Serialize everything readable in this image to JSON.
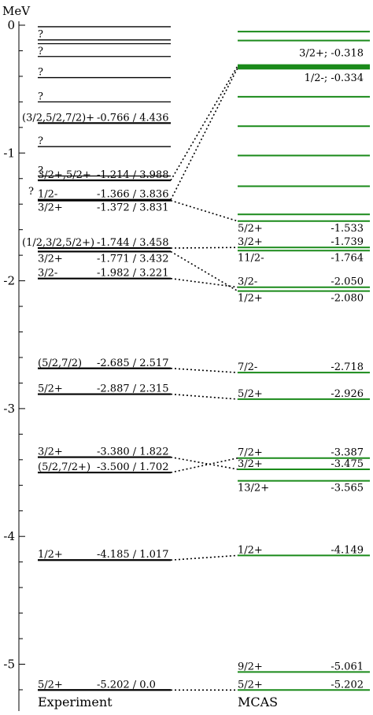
{
  "chart_data": {
    "type": "level-diagram",
    "unit_label": "MeV",
    "ylim": [
      -5.45,
      0.05
    ],
    "yticks": [
      {
        "value": 0,
        "label": "0"
      },
      {
        "value": -1,
        "label": "-1"
      },
      {
        "value": -2,
        "label": "-2"
      },
      {
        "value": -3,
        "label": "-3"
      },
      {
        "value": -4,
        "label": "-4"
      },
      {
        "value": -5,
        "label": "-5"
      }
    ],
    "experiment": {
      "label": "Experiment",
      "levels": [
        {
          "e": -0.012,
          "spin": "",
          "text": "",
          "heavy": false
        },
        {
          "e": -0.115,
          "spin": "?",
          "text": "",
          "heavy": false
        },
        {
          "e": -0.145,
          "spin": "",
          "text": "",
          "heavy": false
        },
        {
          "e": -0.245,
          "spin": "?",
          "text": "",
          "heavy": false
        },
        {
          "e": -0.41,
          "spin": "?",
          "text": "",
          "heavy": false
        },
        {
          "e": -0.6,
          "spin": "?",
          "text": "",
          "heavy": false
        },
        {
          "e": -0.766,
          "spin": "(3/2,5/2,7/2)+",
          "text": "-0.766 / 4.436",
          "heavy": false
        },
        {
          "e": -0.95,
          "spin": "?",
          "text": "",
          "heavy": false
        },
        {
          "e": -1.18,
          "spin": "?",
          "text": "",
          "heavy": false
        },
        {
          "e": -1.214,
          "spin": "3/2+,5/2+",
          "text": "-1.214 / 3.988",
          "heavy": false
        },
        {
          "e": -1.366,
          "spin": "1/2-",
          "text": "-1.366 / 3.836",
          "heavy": false
        },
        {
          "e": -1.372,
          "spin": "3/2+",
          "text": "-1.372 / 3.831",
          "heavy": false
        },
        {
          "e": -1.744,
          "spin": "(1/2,3/2,5/2+)",
          "text": "-1.744 / 3.458",
          "heavy": false
        },
        {
          "e": -1.771,
          "spin": "3/2+",
          "text": "-1.771 / 3.432",
          "heavy": false
        },
        {
          "e": -1.982,
          "spin": "3/2-",
          "text": "-1.982 / 3.221",
          "heavy": false
        },
        {
          "e": -2.685,
          "spin": "(5/2,7/2)",
          "text": "-2.685 / 2.517",
          "heavy": false
        },
        {
          "e": -2.887,
          "spin": "5/2+",
          "text": "-2.887 / 2.315",
          "heavy": false
        },
        {
          "e": -3.38,
          "spin": "3/2+",
          "text": "-3.380 / 1.822",
          "heavy": false
        },
        {
          "e": -3.5,
          "spin": "(5/2,7/2+)",
          "text": "-3.500 / 1.702",
          "heavy": false
        },
        {
          "e": -4.185,
          "spin": "1/2+",
          "text": "-4.185 / 1.017",
          "heavy": false
        },
        {
          "e": -5.202,
          "spin": "5/2+",
          "text": "-5.202 / 0.0",
          "heavy": false
        }
      ],
      "extra_marks": [
        {
          "e": -1.3,
          "spin": "?"
        }
      ]
    },
    "mcas": {
      "label": "MCAS",
      "levels": [
        {
          "e": -0.05,
          "spin": "",
          "text": ""
        },
        {
          "e": -0.12,
          "spin": "",
          "text": ""
        },
        {
          "e": -0.318,
          "spin": "3/2+;",
          "text": "-0.318"
        },
        {
          "e": -0.334,
          "spin": "1/2-;",
          "text": "-0.334"
        },
        {
          "e": -0.56,
          "spin": "",
          "text": ""
        },
        {
          "e": -0.79,
          "spin": "",
          "text": ""
        },
        {
          "e": -1.02,
          "spin": "",
          "text": ""
        },
        {
          "e": -1.26,
          "spin": "",
          "text": ""
        },
        {
          "e": -1.48,
          "spin": "",
          "text": ""
        },
        {
          "e": -1.533,
          "spin": "5/2+",
          "text": "-1.533"
        },
        {
          "e": -1.739,
          "spin": "3/2+",
          "text": "-1.739"
        },
        {
          "e": -1.764,
          "spin": "11/2-",
          "text": "-1.764"
        },
        {
          "e": -2.05,
          "spin": "3/2-",
          "text": "-2.050"
        },
        {
          "e": -2.08,
          "spin": "1/2+",
          "text": "-2.080"
        },
        {
          "e": -2.718,
          "spin": "7/2-",
          "text": "-2.718"
        },
        {
          "e": -2.926,
          "spin": "5/2+",
          "text": "-2.926"
        },
        {
          "e": -3.387,
          "spin": "7/2+",
          "text": "-3.387"
        },
        {
          "e": -3.475,
          "spin": "3/2+",
          "text": "-3.475"
        },
        {
          "e": -3.565,
          "spin": "13/2+",
          "text": "-3.565"
        },
        {
          "e": -4.149,
          "spin": "1/2+",
          "text": "-4.149"
        },
        {
          "e": -5.061,
          "spin": "9/2+",
          "text": "-5.061"
        },
        {
          "e": -5.202,
          "spin": "5/2+",
          "text": "-5.202"
        }
      ]
    },
    "connections": [
      {
        "exp": -1.214,
        "mcas": -0.318
      },
      {
        "exp": -1.366,
        "mcas": -0.334
      },
      {
        "exp": -1.372,
        "mcas": -1.533
      },
      {
        "exp": -1.744,
        "mcas": -1.739
      },
      {
        "exp": -1.771,
        "mcas": -2.08
      },
      {
        "exp": -1.982,
        "mcas": -2.05
      },
      {
        "exp": -2.685,
        "mcas": -2.718
      },
      {
        "exp": -2.887,
        "mcas": -2.926
      },
      {
        "exp": -3.38,
        "mcas": -3.475
      },
      {
        "exp": -3.5,
        "mcas": -3.387
      },
      {
        "exp": -4.185,
        "mcas": -4.149
      },
      {
        "exp": -5.202,
        "mcas": -5.202
      }
    ],
    "colors": {
      "experiment": "#000000",
      "mcas": "#1a8a1a",
      "connector": "#000000"
    }
  }
}
